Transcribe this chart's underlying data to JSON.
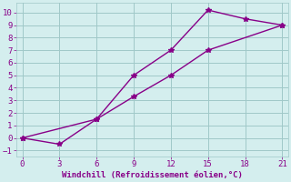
{
  "line1_x": [
    0,
    3,
    6,
    9,
    12,
    15,
    18,
    21
  ],
  "line1_y": [
    0.0,
    -0.5,
    1.5,
    5.0,
    7.0,
    10.2,
    9.5,
    9.0
  ],
  "line2_x": [
    0,
    6,
    9,
    12,
    15,
    21
  ],
  "line2_y": [
    0.0,
    1.5,
    3.3,
    5.0,
    7.0,
    9.0
  ],
  "line_color": "#880088",
  "marker": "*",
  "xlabel": "Windchill (Refroidissement éolien,°C)",
  "xlim": [
    -0.5,
    21.5
  ],
  "ylim": [
    -1.5,
    10.8
  ],
  "xticks": [
    0,
    3,
    6,
    9,
    12,
    15,
    18,
    21
  ],
  "yticks": [
    -1,
    0,
    1,
    2,
    3,
    4,
    5,
    6,
    7,
    8,
    9,
    10
  ],
  "bg_color": "#d4eeee",
  "grid_color": "#a0c8c8",
  "font_color": "#880088",
  "marker_size": 4,
  "line_width": 1.0,
  "tick_fontsize": 6.5,
  "xlabel_fontsize": 6.5
}
